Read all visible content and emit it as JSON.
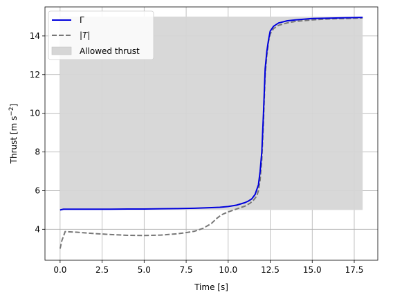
{
  "chart_data": {
    "type": "line",
    "xlabel": "Time [s]",
    "ylabel_main": "Thrust [m s",
    "ylabel_sup": "−2",
    "ylabel_end": "]",
    "xlim": [
      -0.9,
      18.9
    ],
    "ylim": [
      2.4,
      15.5
    ],
    "x_ticks": [
      0.0,
      2.5,
      5.0,
      7.5,
      10.0,
      12.5,
      15.0,
      17.5
    ],
    "x_tick_labels": [
      "0.0",
      "2.5",
      "5.0",
      "7.5",
      "10.0",
      "12.5",
      "15.0",
      "17.5"
    ],
    "y_ticks": [
      4,
      6,
      8,
      10,
      12,
      14
    ],
    "y_tick_labels": [
      "4",
      "6",
      "8",
      "10",
      "12",
      "14"
    ],
    "grid": true,
    "legend_position": "upper-left",
    "band": {
      "name": "Allowed thrust",
      "x": [
        0,
        18
      ],
      "y_min": 5,
      "y_max": 15,
      "color": "#d6d6d6"
    },
    "series": [
      {
        "name": "Γ",
        "color": "#0000dd",
        "style": "solid",
        "x": [
          0,
          0.2,
          1,
          2,
          3,
          4,
          5,
          6,
          7,
          8,
          9,
          9.5,
          10,
          10.5,
          11,
          11.2,
          11.4,
          11.6,
          11.8,
          11.9,
          12.0,
          12.1,
          12.2,
          12.3,
          12.4,
          12.5,
          12.7,
          13,
          13.5,
          14,
          15,
          16,
          17,
          18
        ],
        "y": [
          5.0,
          5.04,
          5.04,
          5.04,
          5.04,
          5.05,
          5.05,
          5.06,
          5.07,
          5.09,
          5.12,
          5.14,
          5.18,
          5.25,
          5.38,
          5.46,
          5.57,
          5.8,
          6.3,
          7.0,
          8.0,
          10.0,
          12.3,
          13.2,
          13.8,
          14.25,
          14.5,
          14.67,
          14.78,
          14.83,
          14.9,
          14.92,
          14.94,
          14.96
        ]
      },
      {
        "name": "|T|",
        "color": "#777777",
        "style": "dashed",
        "x": [
          0,
          0.1,
          0.3,
          1,
          2,
          3,
          4,
          5,
          6,
          7,
          7.5,
          8,
          8.5,
          9,
          9.3,
          9.6,
          10,
          10.5,
          11,
          11.3,
          11.5,
          11.7,
          11.8,
          11.9,
          12.0,
          12.1,
          12.2,
          12.3,
          12.4,
          12.5,
          12.7,
          13,
          13.5,
          14,
          15,
          16,
          17,
          18
        ],
        "y": [
          3.0,
          3.4,
          3.88,
          3.85,
          3.78,
          3.73,
          3.69,
          3.68,
          3.7,
          3.77,
          3.83,
          3.9,
          4.05,
          4.3,
          4.55,
          4.75,
          4.9,
          5.05,
          5.2,
          5.35,
          5.5,
          5.72,
          6.0,
          6.55,
          7.6,
          9.6,
          12.0,
          13.0,
          13.7,
          14.1,
          14.38,
          14.55,
          14.67,
          14.75,
          14.83,
          14.88,
          14.9,
          14.93
        ]
      }
    ]
  }
}
